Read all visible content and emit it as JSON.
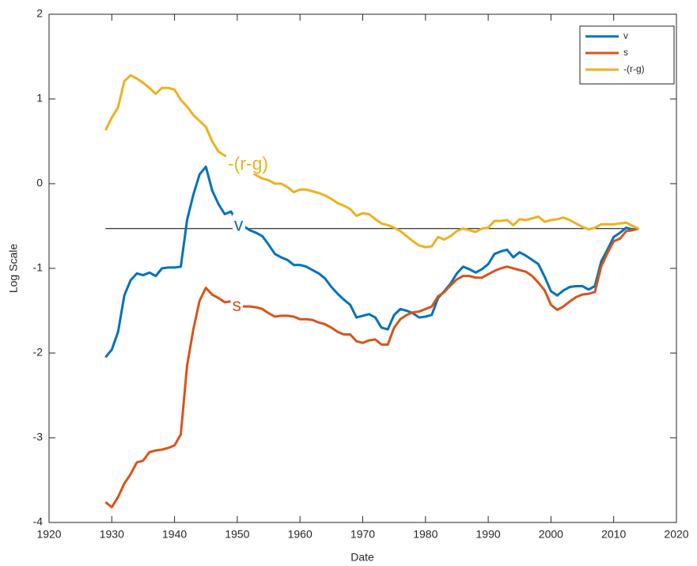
{
  "chart_data": {
    "type": "line",
    "xlabel": "Date",
    "ylabel": "Log Scale",
    "xlim": [
      1920,
      2020
    ],
    "xticks": [
      1920,
      1930,
      1940,
      1950,
      1960,
      1970,
      1980,
      1990,
      2000,
      2010,
      2020
    ],
    "ylim": [
      -4,
      2
    ],
    "yticks": [
      -4,
      -3,
      -2,
      -1,
      0,
      1,
      2
    ],
    "legend": "northeast",
    "x": [
      1929,
      1930,
      1931,
      1932,
      1933,
      1934,
      1935,
      1936,
      1937,
      1938,
      1939,
      1940,
      1941,
      1942,
      1943,
      1944,
      1945,
      1946,
      1947,
      1948,
      1949,
      1950,
      1951,
      1952,
      1953,
      1954,
      1955,
      1956,
      1957,
      1958,
      1959,
      1960,
      1961,
      1962,
      1963,
      1964,
      1965,
      1966,
      1967,
      1968,
      1969,
      1970,
      1971,
      1972,
      1973,
      1974,
      1975,
      1976,
      1977,
      1978,
      1979,
      1980,
      1981,
      1982,
      1983,
      1984,
      1985,
      1986,
      1987,
      1988,
      1989,
      1990,
      1991,
      1992,
      1993,
      1994,
      1995,
      1996,
      1997,
      1998,
      1999,
      2000,
      2001,
      2002,
      2003,
      2004,
      2005,
      2006,
      2007,
      2008,
      2009,
      2010,
      2011,
      2012,
      2013,
      2014
    ],
    "series": [
      {
        "name": "v",
        "color": "#0072BD",
        "values": [
          -2.05,
          -1.96,
          -1.75,
          -1.32,
          -1.14,
          -1.06,
          -1.08,
          -1.05,
          -1.09,
          -1.0,
          -0.99,
          -0.99,
          -0.98,
          -0.43,
          -0.13,
          0.11,
          0.2,
          -0.08,
          -0.24,
          -0.36,
          -0.33,
          -0.45,
          -0.5,
          -0.55,
          -0.58,
          -0.62,
          -0.72,
          -0.83,
          -0.87,
          -0.9,
          -0.96,
          -0.96,
          -0.98,
          -1.02,
          -1.06,
          -1.12,
          -1.22,
          -1.3,
          -1.37,
          -1.43,
          -1.58,
          -1.56,
          -1.54,
          -1.58,
          -1.7,
          -1.72,
          -1.55,
          -1.48,
          -1.5,
          -1.53,
          -1.58,
          -1.57,
          -1.55,
          -1.35,
          -1.27,
          -1.18,
          -1.06,
          -0.98,
          -1.01,
          -1.05,
          -1.01,
          -0.95,
          -0.83,
          -0.8,
          -0.78,
          -0.87,
          -0.81,
          -0.85,
          -0.9,
          -0.95,
          -1.1,
          -1.27,
          -1.32,
          -1.26,
          -1.22,
          -1.21,
          -1.21,
          -1.25,
          -1.21,
          -0.92,
          -0.78,
          -0.63,
          -0.58,
          -0.52,
          -0.54,
          -0.53
        ]
      },
      {
        "name": "s",
        "color": "#D95319",
        "values": [
          -3.76,
          -3.82,
          -3.7,
          -3.54,
          -3.43,
          -3.29,
          -3.27,
          -3.17,
          -3.15,
          -3.14,
          -3.12,
          -3.09,
          -2.96,
          -2.15,
          -1.72,
          -1.38,
          -1.23,
          -1.31,
          -1.35,
          -1.4,
          -1.39,
          -1.44,
          -1.45,
          -1.45,
          -1.46,
          -1.48,
          -1.53,
          -1.57,
          -1.56,
          -1.56,
          -1.57,
          -1.6,
          -1.6,
          -1.61,
          -1.64,
          -1.66,
          -1.7,
          -1.75,
          -1.78,
          -1.78,
          -1.86,
          -1.88,
          -1.85,
          -1.84,
          -1.9,
          -1.9,
          -1.7,
          -1.6,
          -1.55,
          -1.52,
          -1.51,
          -1.48,
          -1.45,
          -1.33,
          -1.28,
          -1.2,
          -1.13,
          -1.09,
          -1.09,
          -1.11,
          -1.11,
          -1.07,
          -1.03,
          -1.0,
          -0.98,
          -1.0,
          -1.02,
          -1.04,
          -1.09,
          -1.17,
          -1.26,
          -1.43,
          -1.49,
          -1.45,
          -1.39,
          -1.34,
          -1.31,
          -1.3,
          -1.28,
          -0.98,
          -0.82,
          -0.68,
          -0.65,
          -0.56,
          -0.55,
          -0.53
        ]
      },
      {
        "name": "-(r-g)",
        "color": "#EDB120",
        "values": [
          0.63,
          0.78,
          0.9,
          1.21,
          1.28,
          1.24,
          1.19,
          1.13,
          1.06,
          1.13,
          1.13,
          1.11,
          0.99,
          0.91,
          0.81,
          0.74,
          0.67,
          0.5,
          0.38,
          0.33,
          0.32,
          0.27,
          0.2,
          0.15,
          0.1,
          0.06,
          0.04,
          0.0,
          0.0,
          -0.04,
          -0.1,
          -0.07,
          -0.07,
          -0.09,
          -0.11,
          -0.14,
          -0.18,
          -0.23,
          -0.26,
          -0.3,
          -0.38,
          -0.35,
          -0.36,
          -0.42,
          -0.47,
          -0.49,
          -0.52,
          -0.56,
          -0.62,
          -0.68,
          -0.73,
          -0.75,
          -0.74,
          -0.63,
          -0.66,
          -0.62,
          -0.56,
          -0.53,
          -0.55,
          -0.57,
          -0.53,
          -0.52,
          -0.44,
          -0.44,
          -0.43,
          -0.49,
          -0.42,
          -0.43,
          -0.41,
          -0.39,
          -0.45,
          -0.43,
          -0.42,
          -0.4,
          -0.43,
          -0.47,
          -0.51,
          -0.54,
          -0.52,
          -0.48,
          -0.48,
          -0.48,
          -0.47,
          -0.46,
          -0.5,
          -0.53
        ]
      }
    ],
    "reference_line": {
      "y": -0.53,
      "x": [
        1929,
        2014
      ],
      "color": "#000000"
    },
    "annotations": [
      {
        "text": "-(r-g)",
        "x": 1948.5,
        "y": 0.22,
        "color": "#EDB120"
      },
      {
        "text": "v",
        "x": 1949.5,
        "y": -0.5,
        "color": "#0072BD"
      },
      {
        "text": "s",
        "x": 1949.2,
        "y": -1.45,
        "color": "#D95319"
      }
    ]
  }
}
